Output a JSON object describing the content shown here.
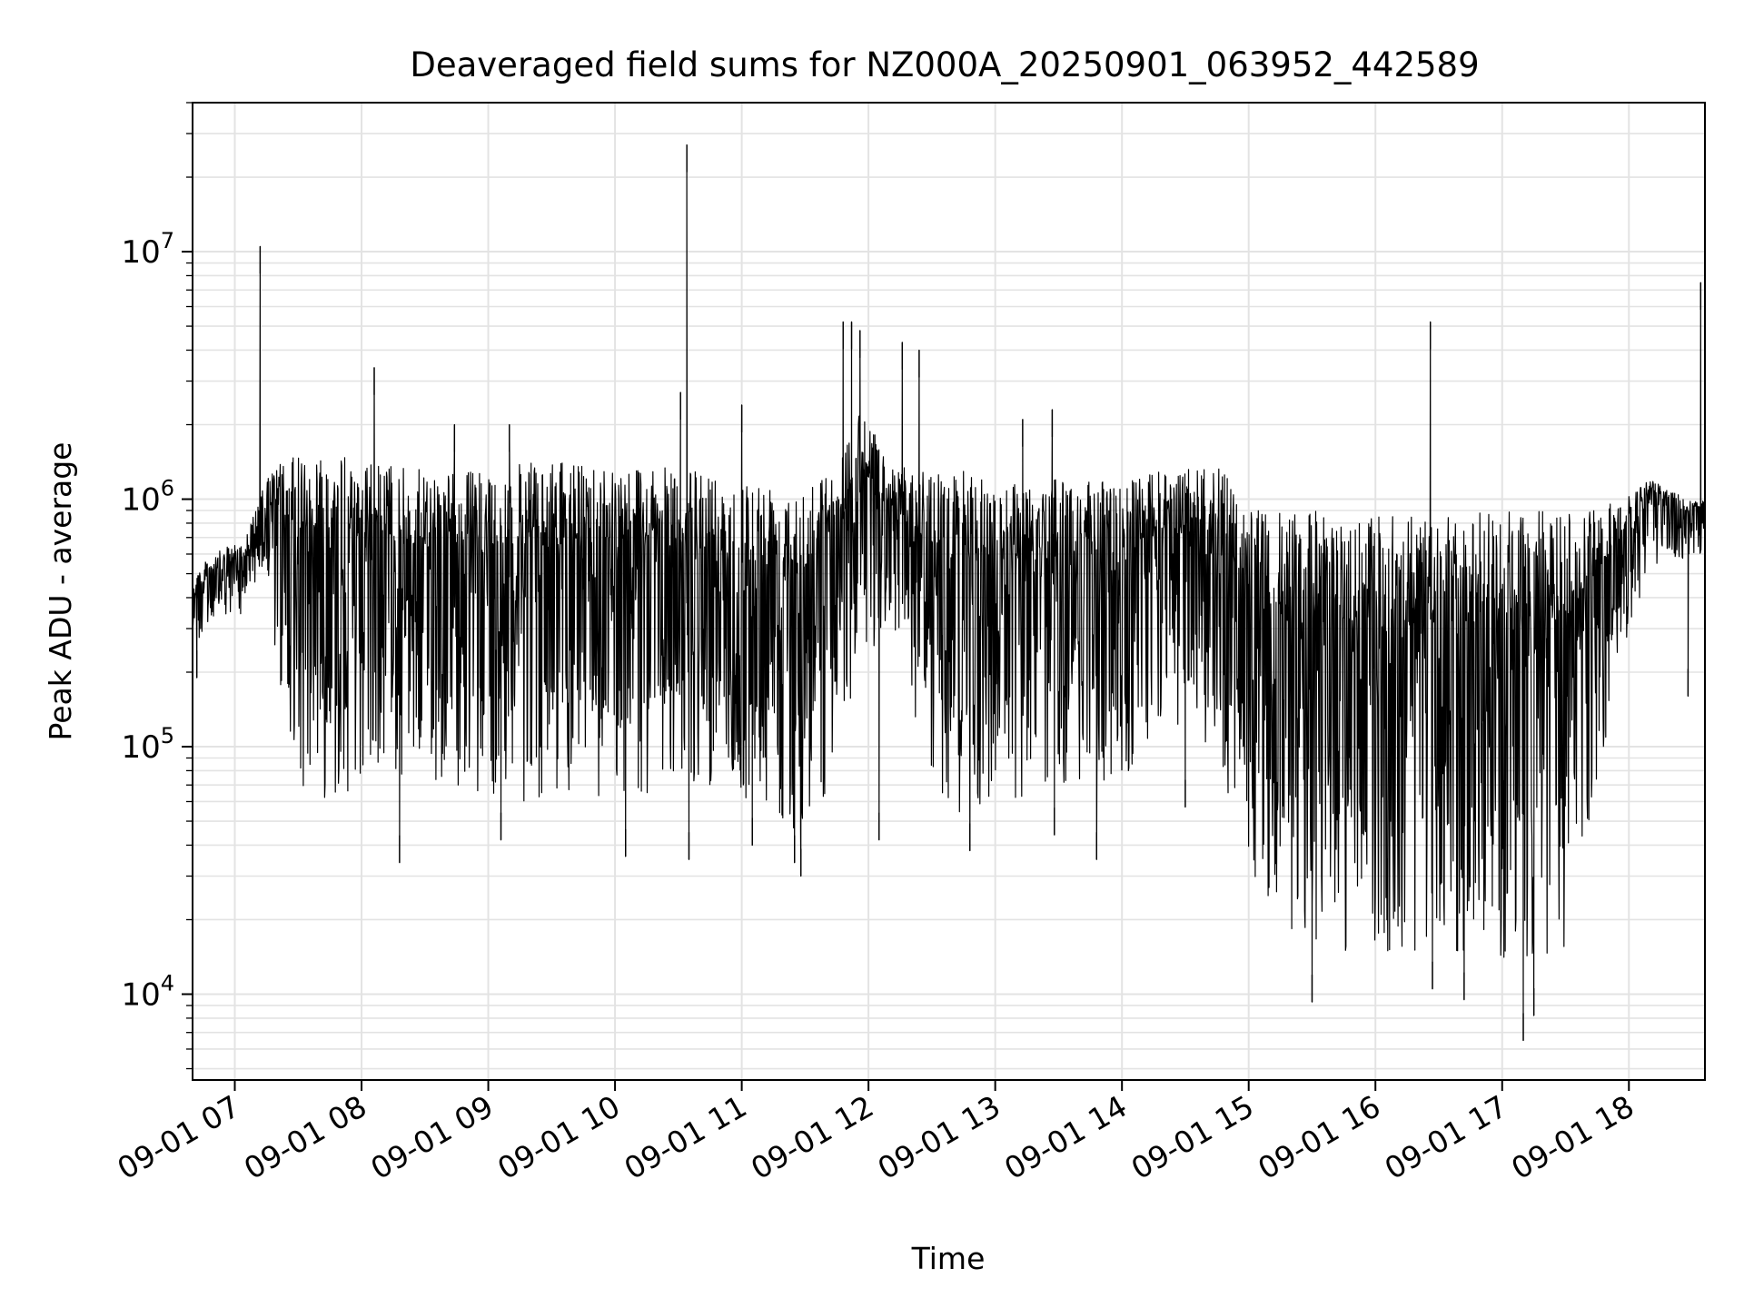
{
  "chart_data": {
    "type": "line",
    "title": "Deaveraged field sums for NZ000A_20250901_063952_442589",
    "xlabel": "Time",
    "ylabel": "Peak ADU - average",
    "yscale": "log",
    "ylim": [
      4500,
      40000000
    ],
    "xlim": [
      "2025-09-01 06:40",
      "2025-09-01 18:36"
    ],
    "grid": true,
    "series_color": "#000000",
    "x_ticks": [
      {
        "value": "2025-09-01 07:00",
        "label": "09-01 07"
      },
      {
        "value": "2025-09-01 08:00",
        "label": "09-01 08"
      },
      {
        "value": "2025-09-01 09:00",
        "label": "09-01 09"
      },
      {
        "value": "2025-09-01 10:00",
        "label": "09-01 10"
      },
      {
        "value": "2025-09-01 11:00",
        "label": "09-01 11"
      },
      {
        "value": "2025-09-01 12:00",
        "label": "09-01 12"
      },
      {
        "value": "2025-09-01 13:00",
        "label": "09-01 13"
      },
      {
        "value": "2025-09-01 14:00",
        "label": "09-01 14"
      },
      {
        "value": "2025-09-01 15:00",
        "label": "09-01 15"
      },
      {
        "value": "2025-09-01 16:00",
        "label": "09-01 16"
      },
      {
        "value": "2025-09-01 17:00",
        "label": "09-01 17"
      },
      {
        "value": "2025-09-01 18:00",
        "label": "09-01 18"
      }
    ],
    "y_ticks": [
      {
        "value": 10000,
        "base": "10",
        "exp": "4"
      },
      {
        "value": 100000,
        "base": "10",
        "exp": "5"
      },
      {
        "value": 1000000,
        "base": "10",
        "exp": "6"
      },
      {
        "value": 10000000,
        "base": "10",
        "exp": "7"
      }
    ],
    "envelope": {
      "x": [
        "2025-09-01 06:40",
        "2025-09-01 06:50",
        "2025-09-01 07:05",
        "2025-09-01 07:15",
        "2025-09-01 07:20",
        "2025-09-01 07:30",
        "2025-09-01 07:45",
        "2025-09-01 08:00",
        "2025-09-01 08:15",
        "2025-09-01 08:30",
        "2025-09-01 08:45",
        "2025-09-01 09:00",
        "2025-09-01 09:15",
        "2025-09-01 09:30",
        "2025-09-01 09:45",
        "2025-09-01 10:00",
        "2025-09-01 10:15",
        "2025-09-01 10:30",
        "2025-09-01 10:45",
        "2025-09-01 11:00",
        "2025-09-01 11:15",
        "2025-09-01 11:30",
        "2025-09-01 11:45",
        "2025-09-01 11:55",
        "2025-09-01 12:10",
        "2025-09-01 12:30",
        "2025-09-01 12:45",
        "2025-09-01 13:00",
        "2025-09-01 13:15",
        "2025-09-01 13:30",
        "2025-09-01 13:45",
        "2025-09-01 14:00",
        "2025-09-01 14:20",
        "2025-09-01 14:45",
        "2025-09-01 15:00",
        "2025-09-01 15:30",
        "2025-09-01 16:00",
        "2025-09-01 16:30",
        "2025-09-01 17:00",
        "2025-09-01 17:30",
        "2025-09-01 17:55",
        "2025-09-01 18:10",
        "2025-09-01 18:30",
        "2025-09-01 18:36"
      ],
      "high": [
        500000,
        600000,
        700000,
        1200000,
        1400000,
        1500000,
        1600000,
        1400000,
        1400000,
        1300000,
        1300000,
        1300000,
        1400000,
        1400000,
        1400000,
        1400000,
        1400000,
        1300000,
        1300000,
        1200000,
        1200000,
        1200000,
        1300000,
        2500000,
        1400000,
        1300000,
        1300000,
        1200000,
        1200000,
        1200000,
        1200000,
        1200000,
        1300000,
        1400000,
        900000,
        900000,
        850000,
        850000,
        900000,
        900000,
        1000000,
        1200000,
        1000000,
        1000000
      ],
      "low": [
        250000,
        300000,
        350000,
        500000,
        200000,
        70000,
        60000,
        70000,
        70000,
        70000,
        70000,
        60000,
        60000,
        60000,
        60000,
        60000,
        60000,
        70000,
        70000,
        60000,
        50000,
        45000,
        80000,
        200000,
        300000,
        60000,
        50000,
        60000,
        60000,
        70000,
        70000,
        70000,
        120000,
        100000,
        25000,
        15000,
        14000,
        14000,
        13000,
        15000,
        200000,
        500000,
        600000,
        600000
      ]
    },
    "spikes": [
      {
        "x": "2025-09-01 07:12",
        "y": 10500000
      },
      {
        "x": "2025-09-01 08:06",
        "y": 3400000
      },
      {
        "x": "2025-09-01 08:44",
        "y": 2000000
      },
      {
        "x": "2025-09-01 09:10",
        "y": 2000000
      },
      {
        "x": "2025-09-01 10:31",
        "y": 2700000
      },
      {
        "x": "2025-09-01 10:34",
        "y": 27000000
      },
      {
        "x": "2025-09-01 11:00",
        "y": 2400000
      },
      {
        "x": "2025-09-01 11:48",
        "y": 5200000
      },
      {
        "x": "2025-09-01 11:52",
        "y": 5200000
      },
      {
        "x": "2025-09-01 11:56",
        "y": 4800000
      },
      {
        "x": "2025-09-01 12:16",
        "y": 4300000
      },
      {
        "x": "2025-09-01 12:24",
        "y": 4000000
      },
      {
        "x": "2025-09-01 13:13",
        "y": 2100000
      },
      {
        "x": "2025-09-01 13:27",
        "y": 2300000
      },
      {
        "x": "2025-09-01 16:26",
        "y": 5200000
      },
      {
        "x": "2025-09-01 18:34",
        "y": 7500000
      }
    ],
    "dips": [
      {
        "x": "2025-09-01 06:42",
        "y": 190000
      },
      {
        "x": "2025-09-01 08:18",
        "y": 34000
      },
      {
        "x": "2025-09-01 09:06",
        "y": 42000
      },
      {
        "x": "2025-09-01 10:05",
        "y": 36000
      },
      {
        "x": "2025-09-01 10:35",
        "y": 35000
      },
      {
        "x": "2025-09-01 11:05",
        "y": 40000
      },
      {
        "x": "2025-09-01 11:25",
        "y": 34000
      },
      {
        "x": "2025-09-01 11:28",
        "y": 30000
      },
      {
        "x": "2025-09-01 12:05",
        "y": 42000
      },
      {
        "x": "2025-09-01 12:48",
        "y": 38000
      },
      {
        "x": "2025-09-01 13:28",
        "y": 44000
      },
      {
        "x": "2025-09-01 13:48",
        "y": 35000
      },
      {
        "x": "2025-09-01 14:30",
        "y": 57000
      },
      {
        "x": "2025-09-01 15:30",
        "y": 9300
      },
      {
        "x": "2025-09-01 16:27",
        "y": 10500
      },
      {
        "x": "2025-09-01 16:42",
        "y": 9500
      },
      {
        "x": "2025-09-01 17:10",
        "y": 6500
      },
      {
        "x": "2025-09-01 17:15",
        "y": 8200
      },
      {
        "x": "2025-09-01 18:28",
        "y": 160000
      }
    ]
  }
}
